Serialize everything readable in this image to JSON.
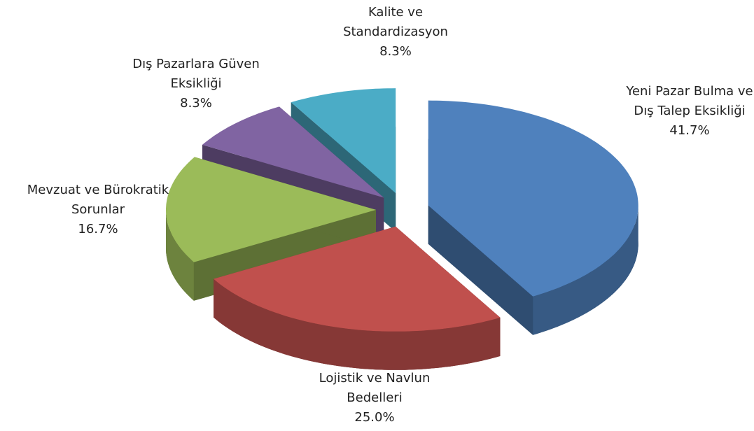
{
  "chart_data": {
    "type": "pie",
    "categories": [
      "Yeni Pazar Bulma ve Dış Talep Eksikliği",
      "Lojistik ve Navlun Bedelleri",
      "Mevzuat ve Bürokratik Sorunlar",
      "Dış Pazarlara Güven Eksikliği",
      "Kalite ve Standardizasyon"
    ],
    "values": [
      41.7,
      25.0,
      16.7,
      8.3,
      8.3
    ],
    "value_labels": [
      "41.7%",
      "25.0%",
      "16.7%",
      "8.3%",
      "8.3%"
    ],
    "colors": [
      "#4f81bd",
      "#c0504d",
      "#9bbb59",
      "#8064a2",
      "#4bacc6"
    ]
  }
}
